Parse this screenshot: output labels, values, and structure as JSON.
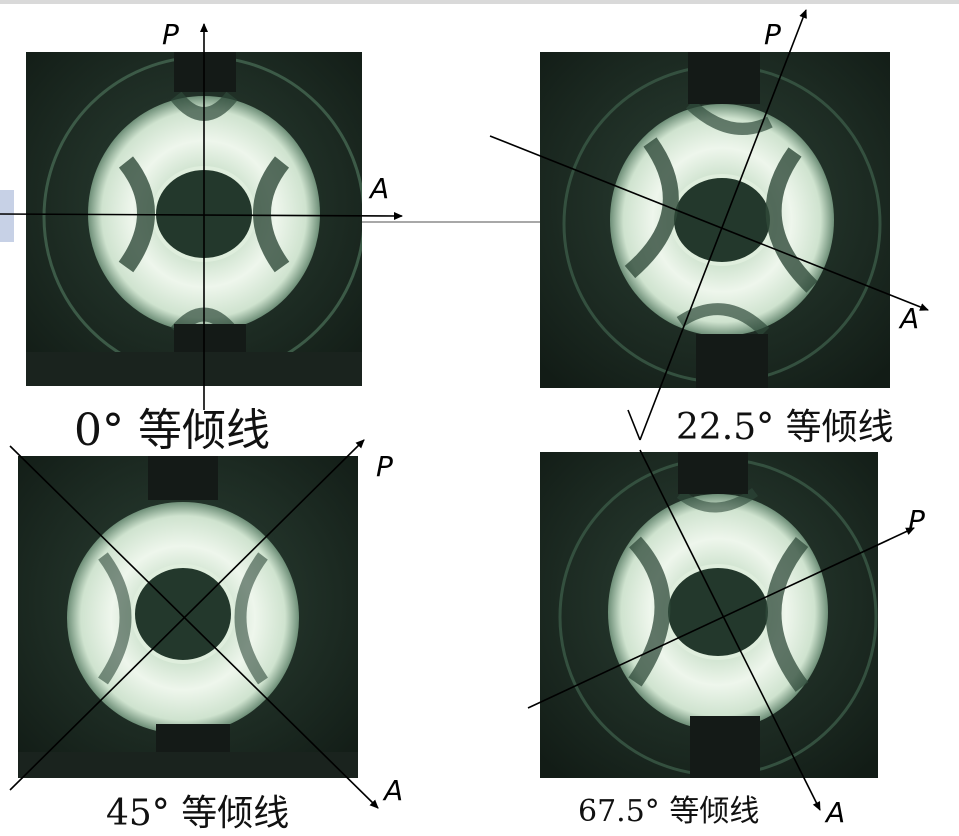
{
  "panels": [
    {
      "id": "p0",
      "caption": "0° 等倾线",
      "polarizer": "P",
      "analyzer": "A"
    },
    {
      "id": "p22",
      "caption": "22.5° 等倾线",
      "polarizer": "P",
      "analyzer": "A"
    },
    {
      "id": "p45",
      "caption": "45° 等倾线",
      "polarizer": "P",
      "analyzer": "A"
    },
    {
      "id": "p67",
      "caption": "67.5° 等倾线",
      "polarizer": "P",
      "analyzer": "A"
    }
  ],
  "colors": {
    "photo_background": "#1b2a22",
    "ring_light": "#e8f2e6",
    "ring_mid": "#9fbfa9",
    "hole": "#23382c",
    "clamp": "#141a17",
    "line": "#000000"
  }
}
